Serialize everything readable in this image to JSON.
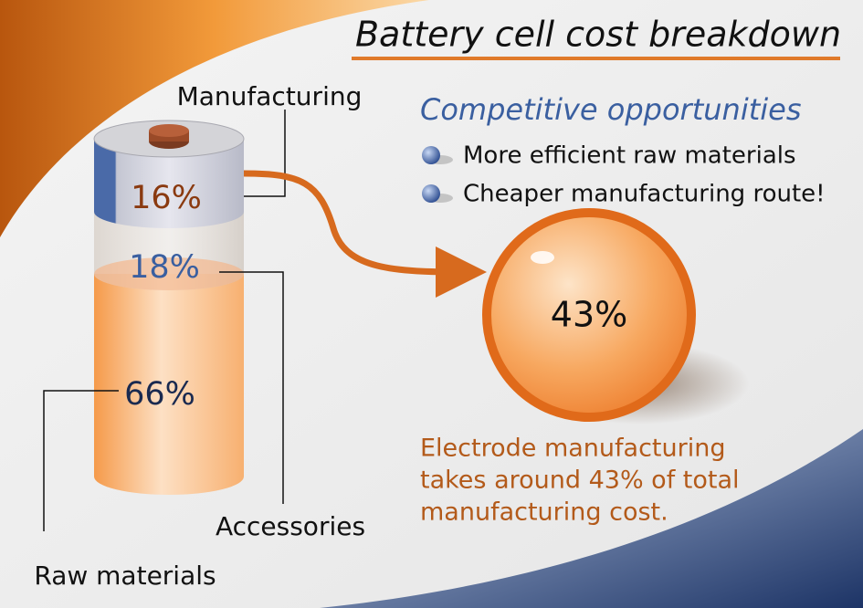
{
  "title": "Battery cell cost breakdown",
  "battery": {
    "segments": [
      {
        "name": "Manufacturing",
        "share": "16%"
      },
      {
        "name": "Accessories",
        "share": "18%"
      },
      {
        "name": "Raw materials",
        "share": "66%"
      }
    ]
  },
  "opportunities": {
    "heading": "Competitive opportunities",
    "items": [
      "More efficient raw materials",
      "Cheaper manufacturing route!"
    ]
  },
  "highlight": {
    "share": "43%",
    "note": [
      "Electrode manufacturing",
      "takes around 43% of total",
      "manufacturing cost."
    ]
  }
}
